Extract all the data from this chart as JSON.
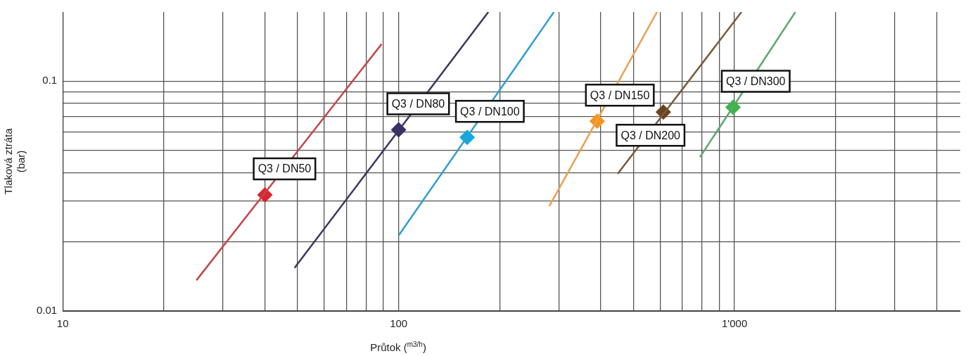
{
  "chart_data": {
    "type": "line",
    "xlabel": "Průtok ($^{m3/h}$)",
    "ylabel": "Tlaková ztráta (bar)",
    "log": "xy",
    "grid": true,
    "legend": false,
    "xlim": [
      10,
      4700
    ],
    "ylim": [
      0.01,
      0.2
    ],
    "xticks": [
      10,
      {
        "value": 20,
        "label": null
      },
      {
        "value": 30,
        "label": null
      },
      {
        "value": 40,
        "label": null
      },
      {
        "value": 50,
        "label": null
      },
      {
        "value": 60,
        "label": null
      },
      {
        "value": 70,
        "label": null
      },
      {
        "value": 80,
        "label": null
      },
      {
        "value": 90,
        "label": null
      },
      100,
      {
        "value": 200,
        "label": null
      },
      {
        "value": 300,
        "label": null
      },
      {
        "value": 400,
        "label": null
      },
      {
        "value": 500,
        "label": null
      },
      {
        "value": 600,
        "label": null
      },
      {
        "value": 700,
        "label": null
      },
      {
        "value": 800,
        "label": null
      },
      {
        "value": 900,
        "label": null
      },
      {
        "value": 1000,
        "label": "1'000"
      },
      {
        "value": 2000,
        "label": null
      },
      {
        "value": 3000,
        "label": null
      },
      {
        "value": 4000,
        "label": null
      }
    ],
    "yticks": [
      0.01,
      {
        "value": 0.02,
        "label": null
      },
      {
        "value": 0.03,
        "label": null
      },
      {
        "value": 0.04,
        "label": null
      },
      {
        "value": 0.05,
        "label": null
      },
      {
        "value": 0.06,
        "label": null
      },
      {
        "value": 0.07,
        "label": null
      },
      {
        "value": 0.08,
        "label": null
      },
      {
        "value": 0.09,
        "label": null
      },
      0.1
    ],
    "series": [
      {
        "color": "#c0474a",
        "x": [
          25,
          89
        ],
        "values": [
          0.0136,
          0.145
        ]
      },
      {
        "color": "#3d3560",
        "x": [
          49,
          185
        ],
        "values": [
          0.0154,
          0.2
        ]
      },
      {
        "color": "#2f9fd0",
        "x": [
          100,
          290
        ],
        "values": [
          0.0213,
          0.2
        ]
      },
      {
        "color": "#e9a050",
        "x": [
          281,
          588
        ],
        "values": [
          0.0286,
          0.2
        ]
      },
      {
        "color": "#7a5a3a",
        "x": [
          449,
          1049
        ],
        "values": [
          0.0395,
          0.2
        ]
      },
      {
        "color": "#5fa86a",
        "x": [
          789,
          1518
        ],
        "values": [
          0.0467,
          0.2
        ]
      },
      {
        "type": "scatter",
        "marker": "diamond",
        "x": [
          40,
          100,
          160,
          390,
          614,
          990
        ],
        "values": [
          0.032,
          0.0614,
          0.0569,
          0.067,
          0.0734,
          0.077
        ],
        "colors": [
          "#d9262e",
          "#3a2f66",
          "#12a8e0",
          "#f7941d",
          "#6b4420",
          "#3cb54a"
        ]
      }
    ],
    "annotations": [
      {
        "text": "Q3 / DN50",
        "x": 40,
        "y": 0.032
      },
      {
        "text": "Q3 / DN80",
        "x": 100,
        "y": 0.0614
      },
      {
        "text": "Q3 / DN100",
        "x": 160,
        "y": 0.0569
      },
      {
        "text": "Q3 / DN150",
        "x": 390,
        "y": 0.067
      },
      {
        "text": "Q3 / DN200",
        "x": 614,
        "y": 0.0734
      },
      {
        "text": "Q3 / DN300",
        "x": 990,
        "y": 0.077
      }
    ]
  }
}
